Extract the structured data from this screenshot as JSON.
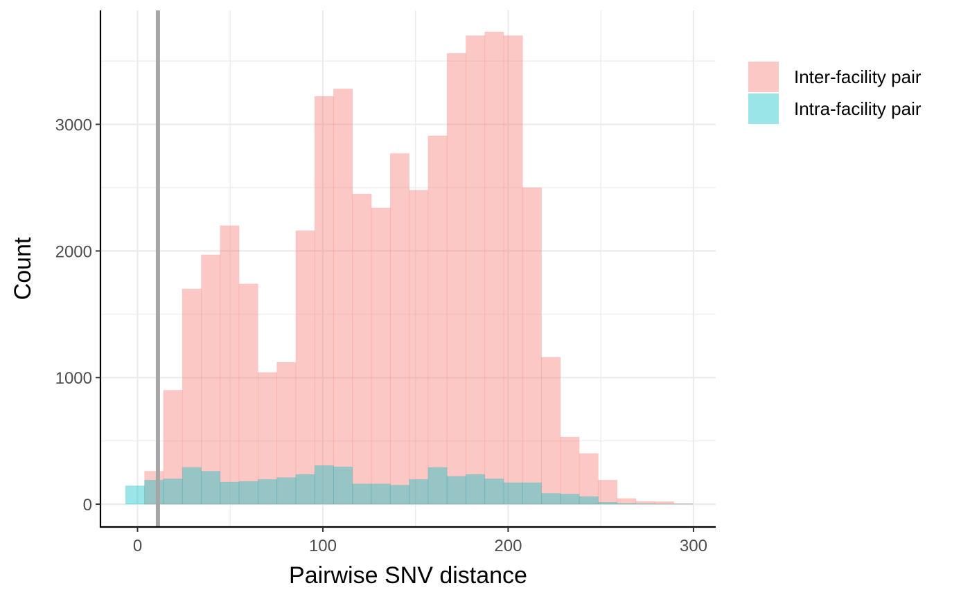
{
  "chart_data": {
    "type": "bar",
    "subtype": "overlaid-histogram",
    "xlabel": "Pairwise SNV distance",
    "ylabel": "Count",
    "xlim": [
      -20,
      312
    ],
    "ylim": [
      -180,
      3900
    ],
    "x_ticks": [
      0,
      100,
      200,
      300
    ],
    "y_ticks": [
      0,
      1000,
      2000,
      3000
    ],
    "grid": true,
    "legend_position": "right",
    "bin_width": 10.2,
    "bin_centers": [
      -1.3,
      8.9,
      19.1,
      29.3,
      39.5,
      49.7,
      59.9,
      70.1,
      80.3,
      90.5,
      100.7,
      110.9,
      121.1,
      131.3,
      141.5,
      151.7,
      161.9,
      172.1,
      182.3,
      192.5,
      202.7,
      212.9,
      223.1,
      233.3,
      243.5,
      253.7,
      263.9,
      274.1,
      284.3,
      294.5
    ],
    "series": [
      {
        "name": "Inter-facility pair",
        "color": "#F8766D",
        "values": [
          0,
          260,
          900,
          1700,
          1970,
          2200,
          1740,
          1040,
          1120,
          2160,
          3220,
          3280,
          2450,
          2340,
          2770,
          2480,
          2910,
          3560,
          3700,
          3730,
          3700,
          2500,
          1160,
          530,
          400,
          190,
          45,
          22,
          20,
          5
        ]
      },
      {
        "name": "Intra-facility pair",
        "color": "#00BFC4",
        "values": [
          145,
          190,
          200,
          290,
          260,
          175,
          180,
          195,
          210,
          235,
          305,
          295,
          160,
          160,
          150,
          195,
          290,
          220,
          235,
          200,
          170,
          170,
          85,
          80,
          60,
          15,
          5,
          3,
          2,
          1
        ]
      }
    ],
    "reference_line": {
      "x": 11,
      "color": "#A6A6A6"
    }
  }
}
